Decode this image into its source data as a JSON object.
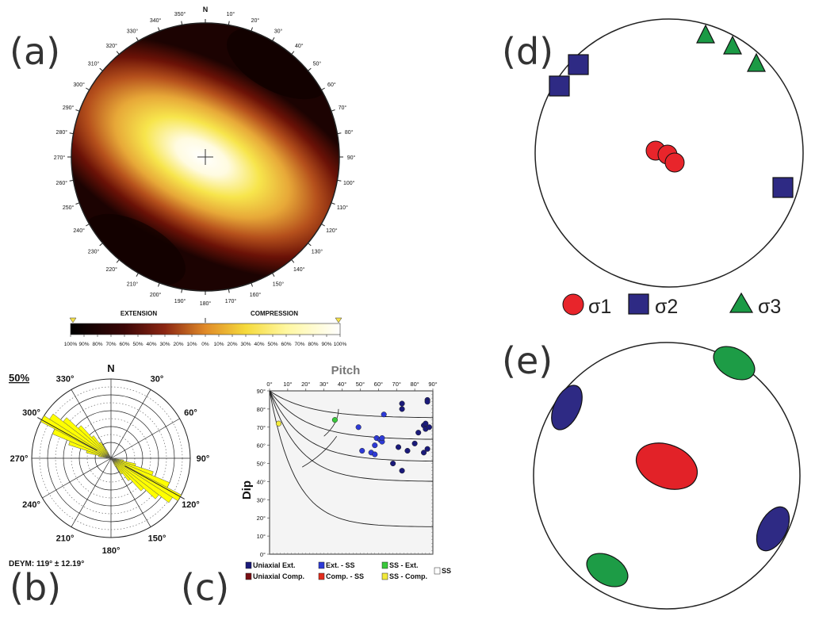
{
  "panel_labels": {
    "a": "(a)",
    "b": "(b)",
    "c": "(c)",
    "d": "(d)",
    "e": "(e)"
  },
  "colors": {
    "sigma1": "#e8252b",
    "sigma2": "#2e2a84",
    "sigma3": "#1b9a45",
    "ellipse_sigma1": "#e22228",
    "ellipse_sigma2": "#2e2a84",
    "ellipse_sigma3": "#1d9c46"
  },
  "chart_data": [
    {
      "id": "a",
      "type": "heatmap",
      "title": "",
      "north_label": "N",
      "azimuth_labels": [
        "10°",
        "20°",
        "30°",
        "40°",
        "50°",
        "60°",
        "70°",
        "80°",
        "90°",
        "100°",
        "110°",
        "120°",
        "130°",
        "140°",
        "150°",
        "160°",
        "170°",
        "180°",
        "190°",
        "200°",
        "210°",
        "220°",
        "230°",
        "240°",
        "250°",
        "260°",
        "270°",
        "280°",
        "290°",
        "300°",
        "310°",
        "320°",
        "330°",
        "340°",
        "350°"
      ],
      "colorbar": {
        "left_title": "EXTENSION",
        "right_title": "COMPRESSION",
        "ticks": [
          "100%",
          "90%",
          "80%",
          "70%",
          "60%",
          "50%",
          "40%",
          "30%",
          "20%",
          "10%",
          "0%",
          "10%",
          "20%",
          "30%",
          "40%",
          "50%",
          "60%",
          "70%",
          "80%",
          "90%",
          "100%"
        ],
        "range": [
          -100,
          100
        ]
      },
      "compression_axis_trend_deg": 118
    },
    {
      "id": "b",
      "type": "rose",
      "scale_label": "50%",
      "north_label": "N",
      "angle_labels": [
        "30°",
        "60°",
        "90°",
        "120°",
        "150°",
        "180°",
        "210°",
        "240°",
        "270°",
        "300°",
        "330°"
      ],
      "mean_label": "DEYM: 119° ± 12.19°",
      "mean_deg": 119,
      "std_deg": 12.19,
      "bins_deg": [
        100,
        105,
        110,
        115,
        120,
        125,
        130,
        135,
        140,
        145,
        150
      ],
      "bin_values_pct": [
        8,
        16,
        28,
        40,
        50,
        46,
        38,
        28,
        18,
        12,
        6
      ]
    },
    {
      "id": "c",
      "type": "scatter",
      "title": "Pitch",
      "xlabel": "",
      "ylabel": "Dip",
      "xlim": [
        0,
        90
      ],
      "ylim": [
        0,
        90
      ],
      "x_ticks": [
        "0°",
        "10°",
        "20°",
        "30°",
        "40°",
        "50°",
        "60°",
        "70°",
        "80°",
        "90°"
      ],
      "y_ticks": [
        "0°",
        "10°",
        "20°",
        "30°",
        "40°",
        "50°",
        "60°",
        "70°",
        "80°",
        "90°"
      ],
      "series": [
        {
          "name": "Uniaxial Ext.",
          "color": "#1a1a7a",
          "points": [
            [
              73,
              83
            ],
            [
              73,
              80
            ],
            [
              87,
              85
            ],
            [
              87,
              84
            ],
            [
              85,
              71
            ],
            [
              86,
              69
            ],
            [
              88,
              70
            ],
            [
              87,
              58
            ],
            [
              85,
              56
            ],
            [
              73,
              46
            ],
            [
              68,
              50
            ],
            [
              71,
              59
            ],
            [
              76,
              57
            ],
            [
              80,
              61
            ],
            [
              82,
              67
            ],
            [
              86,
              72
            ]
          ]
        },
        {
          "name": "Ext. - SS",
          "color": "#2d3ad6",
          "points": [
            [
              49,
              70
            ],
            [
              51,
              57
            ],
            [
              56,
              56
            ],
            [
              58,
              60
            ],
            [
              59,
              64
            ],
            [
              61,
              63
            ],
            [
              62,
              62
            ],
            [
              63,
              77
            ],
            [
              62,
              64
            ],
            [
              58,
              55
            ]
          ]
        },
        {
          "name": "SS - Ext.",
          "color": "#39c83a",
          "points": [
            [
              36,
              74
            ]
          ]
        },
        {
          "name": "Uniaxial Comp.",
          "color": "#7a0f14",
          "points": []
        },
        {
          "name": "Comp. - SS",
          "color": "#e22c1c",
          "points": []
        },
        {
          "name": "SS - Comp.",
          "color": "#f2ea3a",
          "points": [
            [
              5,
              72
            ]
          ]
        },
        {
          "name": "SS",
          "color": "#ffffff",
          "points": []
        }
      ]
    }
  ],
  "panel_d": {
    "legend": [
      {
        "symbol": "circle",
        "label": "σ1"
      },
      {
        "symbol": "square",
        "label": "σ2"
      },
      {
        "symbol": "triangle",
        "label": "σ3"
      }
    ]
  }
}
